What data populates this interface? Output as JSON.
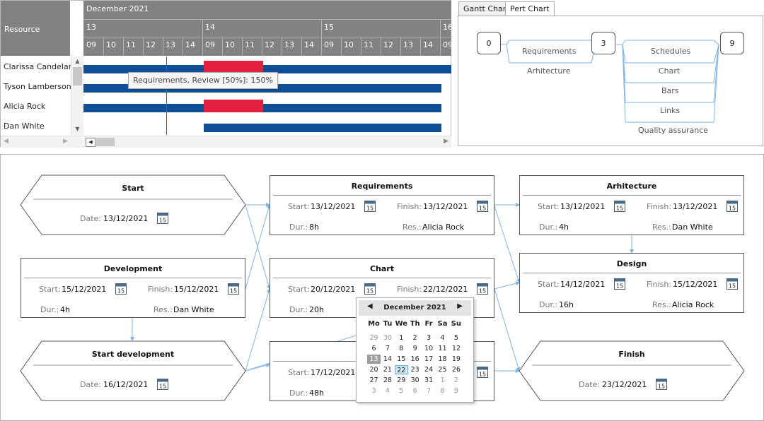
{
  "gantt": {
    "resource_header": "Resource",
    "month": "December 2021",
    "days": [
      "13",
      "14",
      "15",
      "16"
    ],
    "hours": [
      "09",
      "10",
      "11",
      "12",
      "13",
      "14",
      "09",
      "10",
      "11",
      "12",
      "13",
      "14",
      "09",
      "10",
      "11",
      "12",
      "13",
      "14",
      "09"
    ],
    "resources": [
      "Clarissa Candelaria",
      "Tyson Lamberson",
      "Alicia Rock",
      "Dan White"
    ],
    "tooltip": "Requirements, Review [50%]: 150%",
    "colors": {
      "assignment": "#0f4f97",
      "overload": "#e3203d",
      "now_line": "#e3203d"
    }
  },
  "tabs": {
    "gantt": "Gantt Chart",
    "pert": "Pert Chart"
  },
  "pert": {
    "nodes": [
      "0",
      "3",
      "9"
    ],
    "tasks": [
      "Requirements",
      "Arhitecture",
      "Schedules",
      "Chart",
      "Bars",
      "Links",
      "Quality assurance"
    ]
  },
  "network": {
    "labels": {
      "start": "Start:",
      "finish": "Finish:",
      "dur": "Dur.:",
      "res": "Res.:",
      "date": "Date:"
    },
    "calendar_icon_text": "15",
    "start": {
      "title": "Start",
      "date": "13/12/2021"
    },
    "requirements": {
      "title": "Requirements",
      "start": "13/12/2021",
      "finish": "13/12/2021",
      "dur": "8h",
      "res": "Alicia Rock"
    },
    "arhitecture": {
      "title": "Arhitecture",
      "start": "13/12/2021",
      "finish": "13/12/2021",
      "dur": "4h",
      "res": "Dan White"
    },
    "development": {
      "title": "Development",
      "start": "15/12/2021",
      "finish": "15/12/2021",
      "dur": "4h",
      "res": "Dan White"
    },
    "chart": {
      "title": "Chart",
      "start": "20/12/2021",
      "finish": "22/12/2021",
      "dur": "20h"
    },
    "design": {
      "title": "Design",
      "start": "14/12/2021",
      "finish": "15/12/2021",
      "dur": "16h",
      "res": "Alicia Rock"
    },
    "start_development": {
      "title": "Start development",
      "date": "16/12/2021"
    },
    "task_hidden": {
      "start": "17/12/2021",
      "dur": "48h"
    },
    "finish": {
      "title": "Finish",
      "date": "23/12/2021"
    }
  },
  "datepicker": {
    "month": "December 2021",
    "prev": "◀",
    "next": "▶",
    "weekdays": [
      "Mo",
      "Tu",
      "We",
      "Th",
      "Fr",
      "Sa",
      "Su"
    ],
    "weeks": [
      [
        "29",
        "30",
        "1",
        "2",
        "3",
        "4",
        "5"
      ],
      [
        "6",
        "7",
        "8",
        "9",
        "10",
        "11",
        "12"
      ],
      [
        "13",
        "14",
        "15",
        "16",
        "17",
        "18",
        "19"
      ],
      [
        "20",
        "21",
        "22",
        "23",
        "24",
        "25",
        "26"
      ],
      [
        "27",
        "28",
        "29",
        "30",
        "31",
        "1",
        "2"
      ],
      [
        "3",
        "4",
        "5",
        "6",
        "7",
        "8",
        "9"
      ]
    ],
    "today": "13",
    "selected": "22"
  }
}
